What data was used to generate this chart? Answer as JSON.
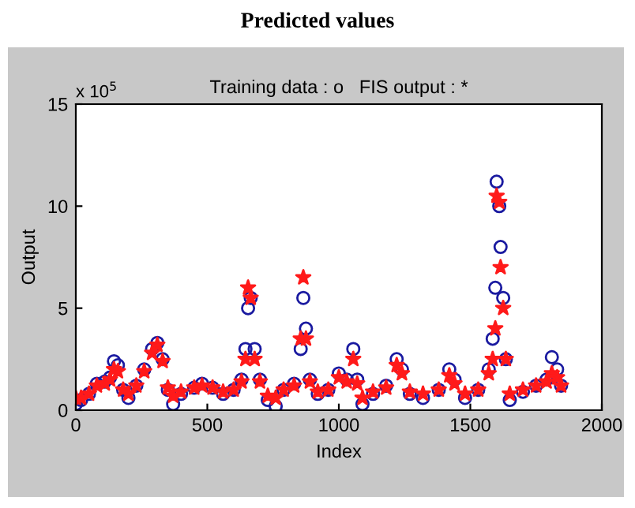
{
  "chart_data": {
    "type": "scatter",
    "title": "Predicted values",
    "subtitle": "Training data : o   FIS output : *",
    "xlabel": "Index",
    "ylabel": "Output",
    "annotations": [
      "x 10$^{5}$"
    ],
    "xlim": [
      0,
      2000
    ],
    "xticks": [
      0,
      500,
      1000,
      1500,
      2000
    ],
    "ylim": [
      0,
      15
    ],
    "yticks": [
      0,
      5,
      10,
      15
    ],
    "grid": false,
    "legend": false,
    "series": [
      {
        "color": "#1a1aa0",
        "marker": "circle",
        "x": [
          0,
          20,
          50,
          80,
          110,
          130,
          145,
          160,
          180,
          200,
          230,
          260,
          290,
          310,
          330,
          350,
          370,
          400,
          450,
          480,
          520,
          560,
          600,
          630,
          645,
          655,
          665,
          680,
          700,
          730,
          760,
          790,
          830,
          855,
          865,
          875,
          890,
          920,
          960,
          1000,
          1030,
          1055,
          1070,
          1090,
          1130,
          1180,
          1220,
          1240,
          1270,
          1320,
          1380,
          1420,
          1440,
          1480,
          1530,
          1570,
          1585,
          1595,
          1600,
          1610,
          1615,
          1625,
          1635,
          1650,
          1700,
          1750,
          1790,
          1810,
          1830,
          1845
        ],
        "values": [
          0.3,
          0.5,
          0.8,
          1.3,
          1.4,
          1.6,
          2.4,
          2.2,
          1.0,
          0.6,
          1.2,
          2.0,
          3.0,
          3.3,
          2.5,
          1.0,
          0.3,
          0.8,
          1.1,
          1.3,
          1.1,
          0.8,
          1.0,
          1.5,
          3.0,
          5.0,
          5.5,
          3.0,
          1.5,
          0.5,
          0.2,
          1.0,
          1.3,
          3.0,
          5.5,
          4.0,
          1.5,
          0.8,
          1.0,
          1.8,
          1.5,
          3.0,
          1.5,
          0.3,
          0.8,
          1.2,
          2.5,
          2.0,
          0.8,
          0.6,
          1.0,
          2.0,
          1.5,
          0.6,
          1.0,
          2.0,
          3.5,
          6.0,
          11.2,
          10.0,
          8.0,
          5.5,
          2.5,
          0.5,
          0.9,
          1.2,
          1.5,
          2.6,
          2.0,
          1.2
        ]
      },
      {
        "color": "#ff1a1a",
        "marker": "star",
        "x": [
          0,
          20,
          50,
          80,
          110,
          130,
          145,
          160,
          180,
          200,
          230,
          260,
          290,
          310,
          330,
          350,
          370,
          400,
          450,
          480,
          520,
          560,
          600,
          630,
          645,
          655,
          665,
          680,
          700,
          730,
          760,
          790,
          830,
          855,
          865,
          875,
          890,
          920,
          960,
          1000,
          1030,
          1055,
          1070,
          1090,
          1130,
          1180,
          1220,
          1240,
          1270,
          1320,
          1380,
          1420,
          1440,
          1480,
          1530,
          1570,
          1585,
          1595,
          1600,
          1610,
          1615,
          1625,
          1635,
          1650,
          1700,
          1750,
          1790,
          1810,
          1830,
          1845
        ],
        "values": [
          0.6,
          0.6,
          0.8,
          1.2,
          1.3,
          1.5,
          2.0,
          1.9,
          1.0,
          0.8,
          1.2,
          1.9,
          2.8,
          3.2,
          2.4,
          1.1,
          0.7,
          0.9,
          1.1,
          1.2,
          1.1,
          0.9,
          1.0,
          1.4,
          2.5,
          6.0,
          5.5,
          2.5,
          1.4,
          0.7,
          0.6,
          1.0,
          1.2,
          3.5,
          6.5,
          3.5,
          1.4,
          0.9,
          1.0,
          1.6,
          1.4,
          2.5,
          1.3,
          0.6,
          0.9,
          1.1,
          2.2,
          1.8,
          0.9,
          0.8,
          1.0,
          1.7,
          1.3,
          0.8,
          1.0,
          1.8,
          2.5,
          4.0,
          10.5,
          10.2,
          7.0,
          5.0,
          2.5,
          0.8,
          1.0,
          1.2,
          1.4,
          1.8,
          1.6,
          1.2
        ]
      }
    ]
  }
}
